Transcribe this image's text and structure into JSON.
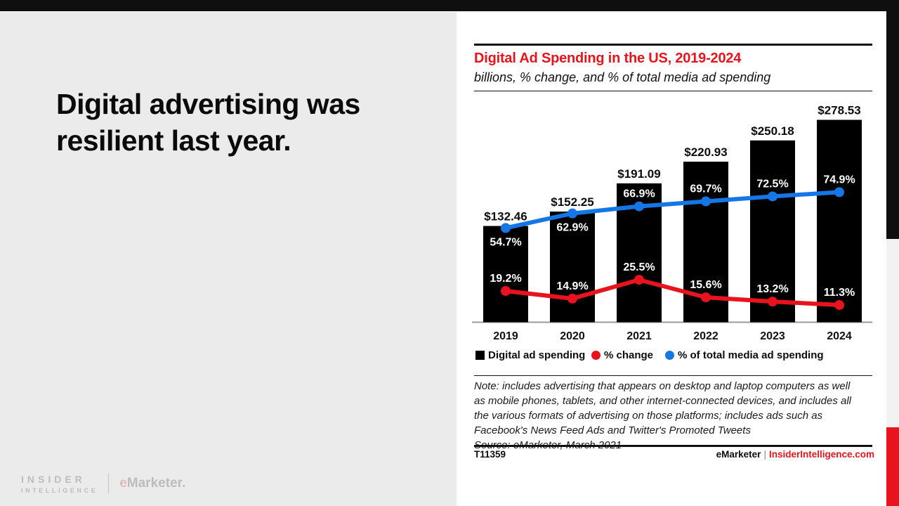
{
  "slide": {
    "headline": "Digital advertising was resilient last year.",
    "brand": {
      "insider": "INSIDER",
      "intelligence": "INTELLIGENCE",
      "emarketer_e": "e",
      "emarketer_rest": "Marketer."
    }
  },
  "panel": {
    "title": "Digital Ad Spending in the US, 2019-2024",
    "subtitle": "billions, % change, and % of total media ad spending",
    "legend": [
      {
        "label": "Digital ad spending",
        "marker": "square",
        "color": "#000000"
      },
      {
        "label": "% change",
        "marker": "dot",
        "color": "#e8131c"
      },
      {
        "label": "% of total media ad spending",
        "marker": "dot",
        "color": "#1577e6"
      }
    ],
    "note_lines": [
      "Note: includes advertising that appears on desktop and laptop computers as well",
      "as mobile phones, tablets, and other internet-connected devices, and includes all",
      "the various formats of advertising on those platforms; includes ads such as",
      "Facebook's News Feed Ads and Twitter's Promoted Tweets"
    ],
    "source": "Source: eMarketer, March 2021",
    "footer": {
      "id": "T11359",
      "brand": "eMarketer",
      "separator": "|",
      "site": "InsiderIntelligence.com"
    }
  },
  "colors": {
    "red": "#e8131c",
    "blue": "#1577e6",
    "bar_black": "#000000",
    "slide_gray": "#ebebeb",
    "axis_gray": "#9a9a9a"
  },
  "chart_data": {
    "type": "bar",
    "title": "Digital Ad Spending in the US, 2019-2024",
    "subtitle": "billions, % change, and % of total media ad spending",
    "categories": [
      "2019",
      "2020",
      "2021",
      "2022",
      "2023",
      "2024"
    ],
    "series": [
      {
        "name": "Digital ad spending",
        "type": "bar",
        "unit": "billions of dollars",
        "values": [
          132.46,
          152.25,
          191.09,
          220.93,
          250.18,
          278.53
        ],
        "labels": [
          "$132.46",
          "$152.25",
          "$191.09",
          "$220.93",
          "$250.18",
          "$278.53"
        ],
        "color": "#000000"
      },
      {
        "name": "% change",
        "type": "line",
        "unit": "percent",
        "values": [
          19.2,
          14.9,
          25.5,
          15.6,
          13.2,
          11.3
        ],
        "labels": [
          "19.2%",
          "14.9%",
          "25.5%",
          "15.6%",
          "13.2%",
          "11.3%"
        ],
        "color": "#e8131c",
        "label_side": [
          "above",
          "above",
          "above",
          "above",
          "above",
          "above"
        ]
      },
      {
        "name": "% of total media ad spending",
        "type": "line",
        "unit": "percent",
        "values": [
          54.7,
          62.9,
          66.9,
          69.7,
          72.5,
          74.9
        ],
        "labels": [
          "54.7%",
          "62.9%",
          "66.9%",
          "69.7%",
          "72.5%",
          "74.9%"
        ],
        "color": "#1577e6",
        "label_side": [
          "below",
          "below",
          "above",
          "above",
          "above",
          "above"
        ]
      }
    ],
    "xlabel": "",
    "ylabel": "",
    "ylim_bars": [
      0,
      310
    ],
    "grid": false,
    "legend_position": "bottom"
  }
}
